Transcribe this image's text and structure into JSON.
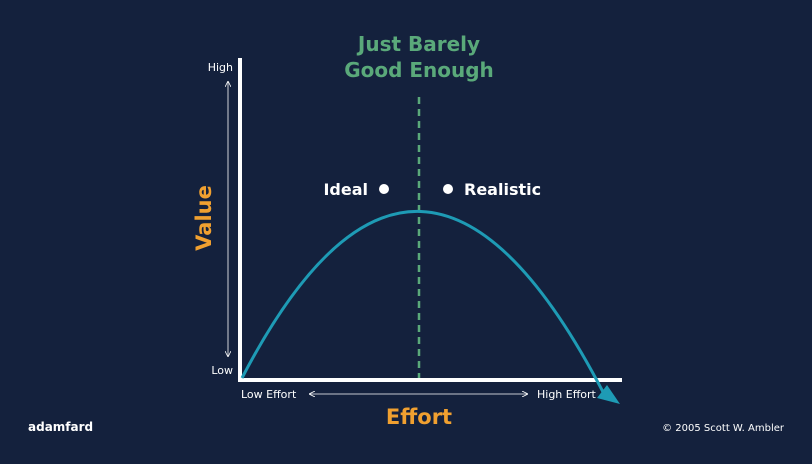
{
  "title_line1": "Just Barely",
  "title_line2": "Good Enough",
  "y_axis": {
    "label": "Value",
    "high": "High",
    "low": "Low"
  },
  "x_axis": {
    "label": "Effort",
    "low": "Low Effort",
    "high": "High Effort"
  },
  "points": {
    "ideal": "Ideal",
    "realistic": "Realistic"
  },
  "brand": "adamfard",
  "copyright": "© 2005 Scott W. Ambler",
  "colors": {
    "background": "#14213d",
    "curve": "#1e9bb5",
    "threshold": "#5aa97a",
    "axis_label": "#f0a030",
    "text": "#ffffff"
  }
}
